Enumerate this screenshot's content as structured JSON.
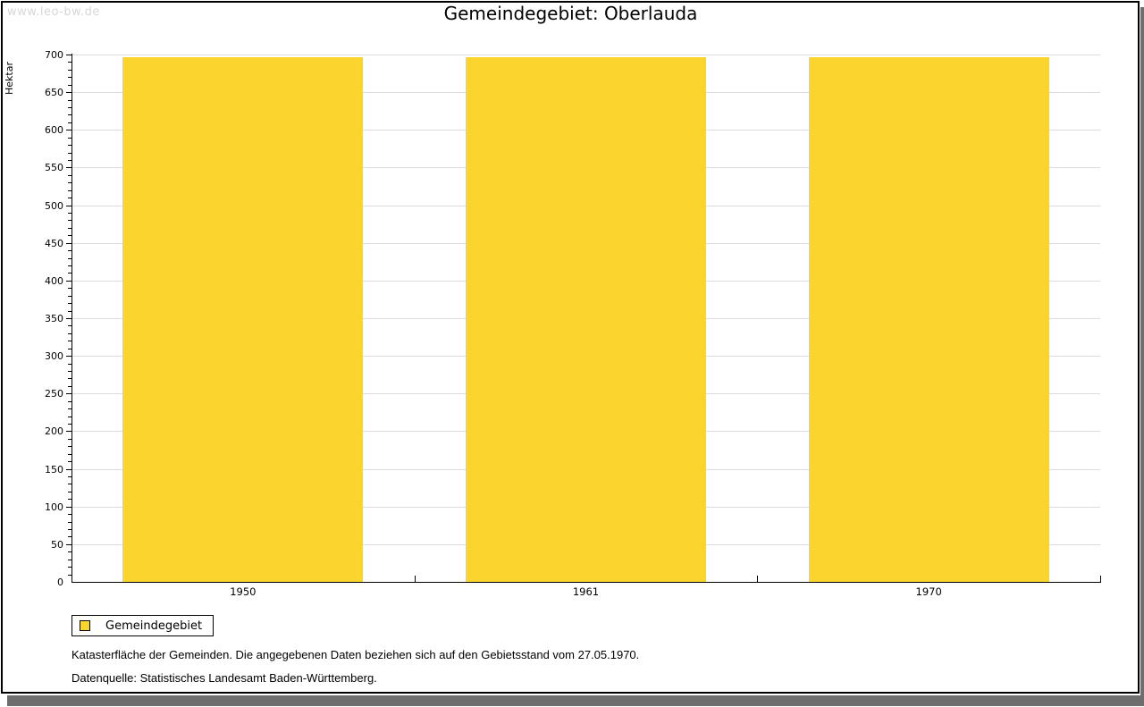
{
  "watermark": "www.leo-bw.de",
  "chart_data": {
    "type": "bar",
    "title": "Gemeindegebiet: Oberlauda",
    "ylabel": "Hektar",
    "xlabel": "",
    "categories": [
      "1950",
      "1961",
      "1970"
    ],
    "series": [
      {
        "name": "Gemeindegebiet",
        "color": "#FCD42E",
        "values": [
          697,
          697,
          697
        ]
      }
    ],
    "ylim": [
      0,
      700
    ],
    "ytick_major_step": 50,
    "ytick_minor_step": 10,
    "grid": "horizontal-major-lines",
    "legend_position": "bottom-left"
  },
  "legend": {
    "label": "Gemeindegebiet"
  },
  "footnotes": [
    "Katasterfläche der Gemeinden. Die angegebenen Daten beziehen sich auf den Gebietsstand vom 27.05.1970.",
    "Datenquelle: Statistisches Landesamt Baden-Württemberg."
  ],
  "colors": {
    "bar_fill": "#FCD42E",
    "gridline": "#DCDCDC",
    "axis": "#000000",
    "frame_border": "#000000",
    "frame_shadow": "#6E6E6E",
    "watermark_text": "#D7D7D7"
  }
}
